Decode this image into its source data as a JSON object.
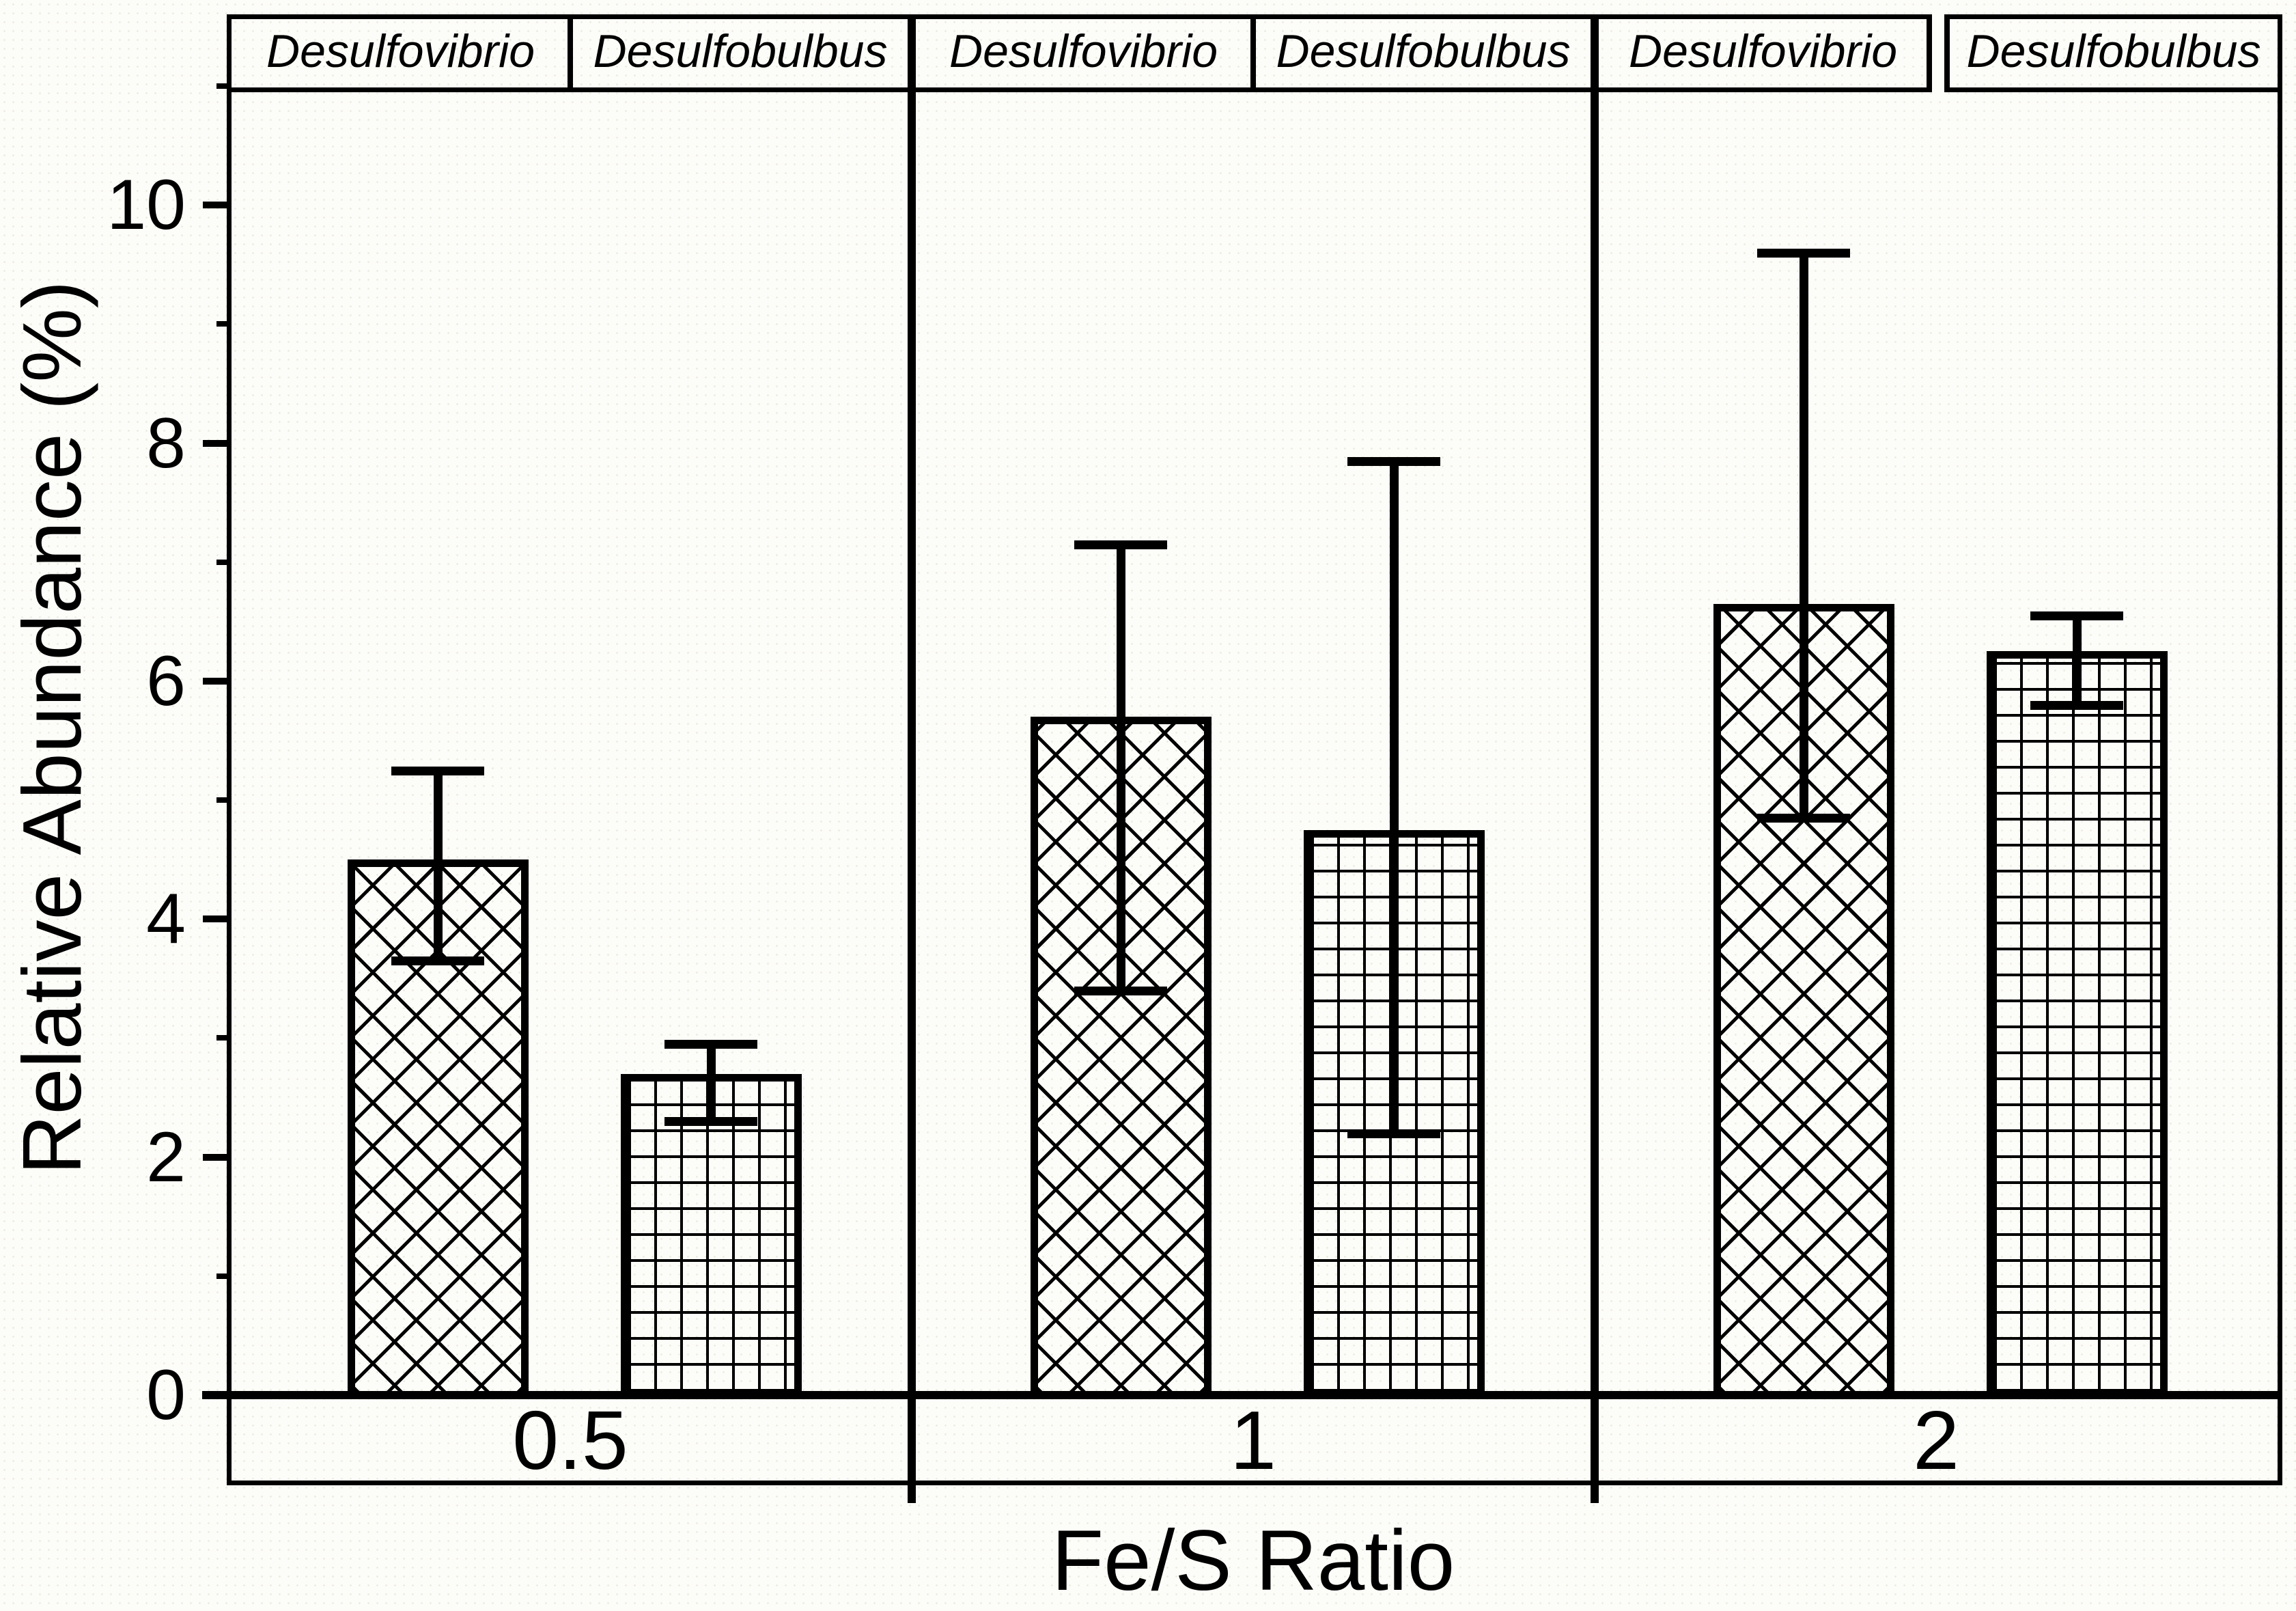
{
  "figure": {
    "background": "#fcfcf8",
    "ink": "#000000",
    "texture": "faint-halftone-dots"
  },
  "chart_data": {
    "type": "bar",
    "title": "",
    "xlabel": "Fe/S Ratio",
    "ylabel": "Relative Abundance (%)",
    "categories": [
      "0.5",
      "1",
      "2"
    ],
    "column_headers": [
      "Desulfovibrio",
      "Desulfobulbus"
    ],
    "series": [
      {
        "name": "Desulfovibrio",
        "pattern": "diagonal-crosshatch",
        "values": [
          4.5,
          5.7,
          6.65
        ],
        "error_high": [
          5.25,
          7.15,
          9.6
        ],
        "error_low": [
          3.65,
          3.4,
          4.85
        ]
      },
      {
        "name": "Desulfobulbus",
        "pattern": "square-grid",
        "values": [
          2.7,
          4.75,
          6.25
        ],
        "error_high": [
          2.95,
          7.85,
          6.55
        ],
        "error_low": [
          2.3,
          2.2,
          5.8
        ]
      }
    ],
    "y_axis": {
      "min": 0,
      "max": 11,
      "major_ticks": [
        0,
        2,
        4,
        6,
        8,
        10
      ],
      "minor_ticks": [
        1,
        3,
        5,
        7,
        9,
        11
      ]
    },
    "x_axis": {
      "label": "Fe/S Ratio"
    },
    "legend_position": "per-panel-column-headers",
    "grid": false,
    "error_bars": "caps-above-and-below"
  }
}
